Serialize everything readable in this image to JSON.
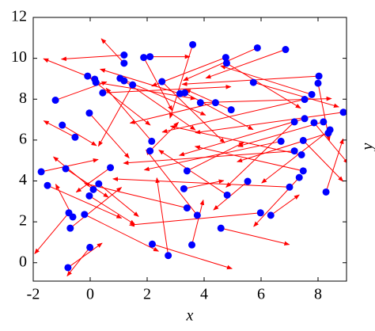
{
  "chart_data": {
    "type": "quiver",
    "x_label": "x",
    "side_label": "y",
    "xlim": [
      -2,
      9
    ],
    "ylim": [
      -0.9,
      12
    ],
    "xticks": [
      -2,
      0,
      2,
      4,
      6,
      8
    ],
    "yticks": [
      0,
      2,
      4,
      6,
      8,
      10,
      12
    ],
    "point_color": "#0000ff",
    "arrow_color": "#ff0000",
    "x": [
      -1.22,
      -0.98,
      -0.53,
      -1.72,
      -1.5,
      -0.86,
      -0.09,
      0.16,
      0.2,
      0.44,
      -0.03,
      1.19,
      1.19,
      1.05,
      1.19,
      1.49,
      1.88,
      2.1,
      2.52,
      3.6,
      3.15,
      3.32,
      3.87,
      4.4,
      4.76,
      4.79,
      4.95,
      5.87,
      6.86,
      5.73,
      8.03,
      8.0,
      7.78,
      7.53,
      7.53,
      7.17,
      7.86,
      8.19,
      8.42,
      8.36,
      8.89,
      6.7,
      7.48,
      7.17,
      7.42,
      7.48,
      7.34,
      7.0,
      8.28,
      5.53,
      4.81,
      5.98,
      6.34,
      4.59,
      3.4,
      3.76,
      3.57,
      3.4,
      3.29,
      2.74,
      2.16,
      2.1,
      2.18,
      0.71,
      0.3,
      0.11,
      -0.03,
      -0.2,
      -0.75,
      -0.61,
      -0.7,
      -0.01,
      -0.78
    ],
    "values": [
      7.95,
      6.73,
      6.14,
      4.45,
      3.78,
      4.6,
      9.13,
      8.98,
      8.82,
      8.31,
      7.32,
      10.16,
      9.76,
      9.02,
      8.9,
      8.7,
      10.04,
      10.08,
      8.86,
      10.67,
      8.27,
      8.31,
      7.83,
      7.83,
      10.04,
      9.76,
      7.48,
      10.51,
      10.43,
      8.82,
      9.13,
      8.78,
      8.23,
      7.99,
      7.05,
      6.89,
      6.85,
      6.89,
      6.5,
      6.34,
      7.36,
      5.94,
      5.98,
      5.47,
      5.28,
      4.49,
      4.17,
      3.7,
      3.46,
      3.98,
      3.31,
      2.44,
      2.32,
      1.69,
      2.68,
      2.32,
      0.87,
      4.49,
      3.62,
      0.35,
      5.94,
      5.47,
      0.91,
      4.65,
      3.86,
      3.58,
      3.27,
      2.36,
      2.44,
      2.24,
      1.69,
      0.75,
      -0.24
    ],
    "u": [
      1.8,
      1.2,
      -1.1,
      2.0,
      2.6,
      1.5,
      2.2,
      -1.8,
      3.5,
      4.5,
      1.4,
      -2.2,
      -0.8,
      3.0,
      2.5,
      -1.2,
      1.0,
      1.4,
      2.2,
      -0.8,
      -2.8,
      2.4,
      4.6,
      -3.0,
      -2.6,
      2.6,
      -1.6,
      -2.6,
      -2.8,
      3.0,
      -4.8,
      0.4,
      -3.2,
      -5.0,
      -4.4,
      -2.4,
      1.2,
      -3.0,
      -2.4,
      -3.2,
      -5.2,
      -4.8,
      1.4,
      -6.0,
      -4.6,
      -3.8,
      -1.6,
      -6.2,
      0.6,
      -1.2,
      -2.4,
      -4.6,
      1.0,
      2.4,
      -3.6,
      -1.8,
      0.4,
      2.0,
      1.4,
      -0.4,
      -1.6,
      1.0,
      2.8,
      -1.2,
      1.4,
      -1.4,
      1.6,
      2.6,
      -1.2,
      -0.6,
      1.8,
      -0.8,
      1.2
    ],
    "v": [
      0.9,
      -1.0,
      0.8,
      0.6,
      -1.6,
      -1.4,
      -2.4,
      1.0,
      -0.8,
      0.3,
      -2.2,
      -0.2,
      1.2,
      -1.8,
      -2.4,
      -3.0,
      -2.6,
      0.0,
      -3.0,
      -3.6,
      1.2,
      -1.8,
      0.2,
      -1.0,
      -1.4,
      -2.2,
      1.0,
      -1.6,
      -1.4,
      -1.2,
      -0.4,
      -2.8,
      1.4,
      -1.6,
      -1.8,
      -3.2,
      -2.0,
      -1.2,
      -2.6,
      -1.4,
      -1.0,
      -1.4,
      -2.0,
      -0.6,
      1.4,
      1.2,
      -2.4,
      0.4,
      2.6,
      -1.4,
      2.2,
      -0.6,
      1.0,
      -0.8,
      1.2,
      3.2,
      2.2,
      1.4,
      0.4,
      3.8,
      2.6,
      1.4,
      -1.2,
      -1.2,
      -1.6,
      1.6,
      -1.4,
      -1.8,
      -2.0,
      1.6,
      2.0,
      -1.4,
      1.2
    ]
  }
}
